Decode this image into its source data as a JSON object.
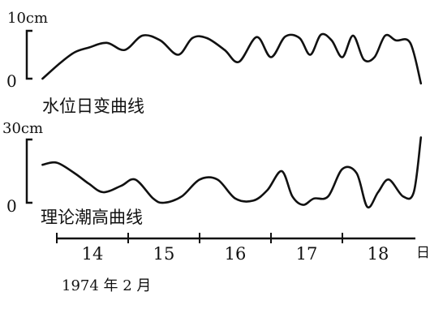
{
  "chart_data": [
    {
      "type": "line",
      "title": "水位日变曲线",
      "scale": {
        "top_label": "10cm",
        "bottom_label": "0",
        "ylim": [
          0,
          10
        ]
      },
      "x": [
        13.3,
        13.55,
        13.75,
        13.95,
        14.2,
        14.45,
        14.7,
        14.95,
        15.2,
        15.4,
        15.6,
        15.85,
        16.05,
        16.3,
        16.5,
        16.7,
        16.9,
        17.05,
        17.2,
        17.35,
        17.5,
        17.65,
        17.8,
        17.95,
        18.1,
        18.25,
        18.45,
        18.6
      ],
      "series": [
        {
          "values": [
            0,
            3.3,
            5.5,
            6.5,
            7.5,
            6.0,
            9.0,
            8.0,
            5.0,
            8.5,
            8.5,
            6.0,
            3.5,
            8.7,
            4.5,
            8.8,
            8.5,
            5.0,
            9.2,
            8.0,
            4.5,
            9.0,
            4.0,
            4.5,
            9.0,
            8.0,
            7.5,
            -1.0
          ]
        }
      ]
    },
    {
      "type": "line",
      "title": "理论潮高曲线",
      "scale": {
        "top_label": "30cm",
        "bottom_label": "0",
        "ylim": [
          0,
          30
        ]
      },
      "x": [
        13.3,
        13.5,
        13.75,
        13.95,
        14.15,
        14.4,
        14.6,
        14.85,
        15.0,
        15.25,
        15.5,
        15.75,
        16.0,
        16.25,
        16.45,
        16.65,
        16.8,
        16.95,
        17.1,
        17.3,
        17.5,
        17.7,
        17.85,
        18.0,
        18.15,
        18.35,
        18.5,
        18.6
      ],
      "series": [
        {
          "values": [
            18,
            19,
            14,
            9,
            5,
            8,
            11,
            2,
            0,
            3,
            11,
            11,
            2,
            1,
            6,
            15,
            3,
            -1,
            2,
            3,
            16,
            14,
            -2,
            5,
            11,
            3,
            5,
            31
          ]
        }
      ]
    }
  ],
  "x_axis": {
    "ticks": [
      "14",
      "15",
      "16",
      "17",
      "18"
    ],
    "unit": "日"
  },
  "caption": "1974 年 2 月"
}
